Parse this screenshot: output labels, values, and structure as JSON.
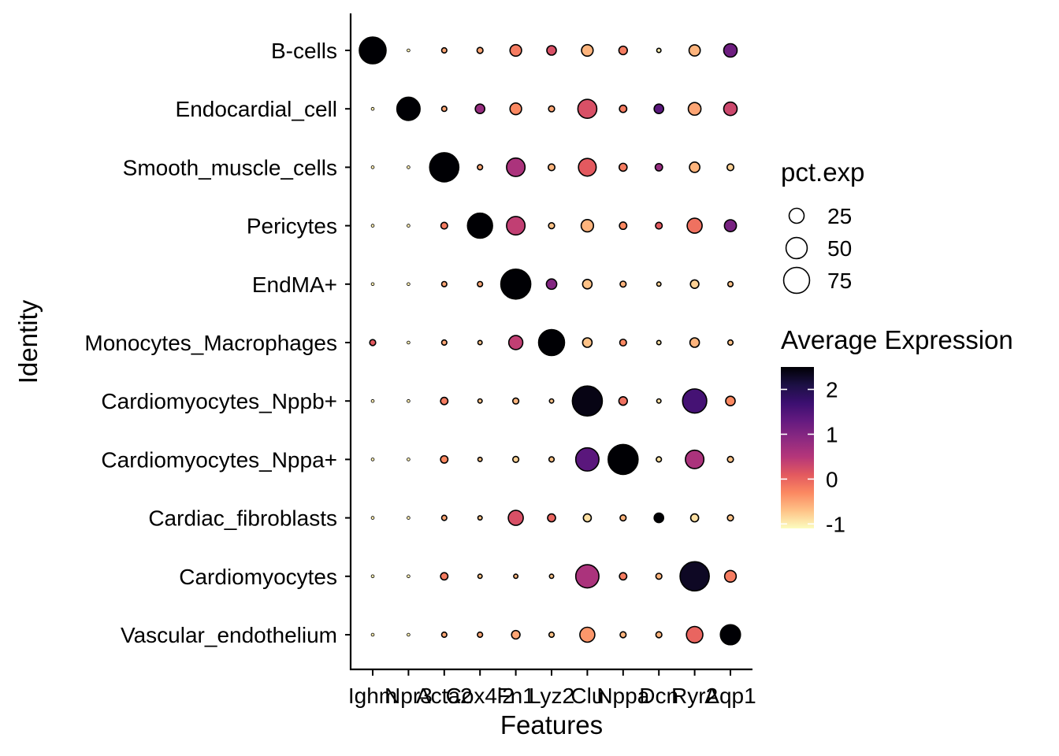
{
  "chart_data": {
    "type": "dotplot",
    "xlabel": "Features",
    "ylabel": "Identity",
    "features": [
      "Ighm",
      "Npr3",
      "Acta2",
      "Cox4i2",
      "Fn1",
      "Lyz2",
      "Clu",
      "Nppa",
      "Dcn",
      "Ryr2",
      "Aqp1"
    ],
    "identities": [
      "B-cells",
      "Endocardial_cell",
      "Smooth_muscle_cells",
      "Pericytes",
      "EndMA+",
      "Monocytes_Macrophages",
      "Cardiomyocytes_Nppb+",
      "Cardiomyocytes_Nppa+",
      "Cardiac_fibroblasts",
      "Cardiomyocytes",
      "Vascular_endothelium"
    ],
    "pct_exp": [
      [
        80,
        1,
        3,
        4,
        15,
        10,
        15,
        8,
        2,
        14,
        20
      ],
      [
        1,
        60,
        3,
        10,
        15,
        4,
        40,
        6,
        10,
        18,
        20
      ],
      [
        1,
        1,
        95,
        3,
        38,
        5,
        35,
        7,
        6,
        12,
        5
      ],
      [
        1,
        1,
        5,
        70,
        38,
        4,
        17,
        6,
        5,
        25,
        16
      ],
      [
        1,
        1,
        3,
        3,
        100,
        12,
        10,
        4,
        2,
        8,
        3
      ],
      [
        4,
        1,
        3,
        2,
        22,
        75,
        10,
        5,
        2,
        10,
        3
      ],
      [
        1,
        1,
        6,
        2,
        4,
        2,
        100,
        8,
        2,
        65,
        10
      ],
      [
        1,
        1,
        6,
        2,
        4,
        3,
        60,
        100,
        3,
        38,
        4
      ],
      [
        1,
        1,
        3,
        2,
        25,
        7,
        7,
        4,
        10,
        7,
        4
      ],
      [
        1,
        1,
        6,
        2,
        2,
        2,
        60,
        6,
        4,
        95,
        15
      ],
      [
        1,
        1,
        3,
        3,
        8,
        3,
        25,
        4,
        4,
        30,
        45
      ]
    ],
    "avg_exp": [
      [
        2.5,
        -1,
        -0.5,
        -0.5,
        -0.2,
        0.2,
        -0.6,
        -0.2,
        -1,
        -0.6,
        1.2
      ],
      [
        -1,
        2.5,
        -0.5,
        0.8,
        -0.3,
        -0.5,
        0.2,
        -0.2,
        1.4,
        -0.5,
        0.3
      ],
      [
        -1,
        -1,
        2.5,
        -0.5,
        0.6,
        -0.6,
        0.1,
        -0.2,
        0.8,
        -0.6,
        -0.8
      ],
      [
        -1,
        -1,
        -0.2,
        2.5,
        0.4,
        -0.7,
        -0.6,
        -0.3,
        0.1,
        -0.1,
        1.1
      ],
      [
        -1,
        -1,
        -0.5,
        -0.5,
        2.5,
        1.0,
        -0.7,
        -0.6,
        -0.8,
        -0.8,
        -0.7
      ],
      [
        0.1,
        -1,
        -0.5,
        -0.7,
        0.4,
        2.5,
        -0.7,
        -0.3,
        -0.9,
        -0.6,
        -0.7
      ],
      [
        -1,
        -1,
        -0.2,
        -0.7,
        -0.6,
        -0.7,
        2.4,
        -0.1,
        -0.9,
        1.6,
        -0.3
      ],
      [
        -1,
        -1,
        -0.3,
        -0.7,
        -0.8,
        -0.7,
        1.4,
        2.5,
        -0.9,
        0.6,
        -0.7
      ],
      [
        -1,
        -1,
        -0.5,
        -0.7,
        0.2,
        0.0,
        -0.9,
        -0.6,
        2.5,
        -0.9,
        -0.7
      ],
      [
        -1,
        -1,
        -0.2,
        -0.7,
        -0.6,
        -0.7,
        0.6,
        -0.2,
        -0.6,
        2.3,
        -0.2
      ],
      [
        -1,
        -1,
        -0.5,
        -0.5,
        -0.5,
        -0.7,
        -0.4,
        -0.6,
        -0.6,
        0.0,
        2.5
      ]
    ],
    "size_legend": {
      "title": "pct.exp",
      "values": [
        25,
        50,
        75
      ],
      "labels": [
        "25",
        "50",
        "75"
      ]
    },
    "color_legend": {
      "title": "Average Expression",
      "range": [
        -1.1,
        2.5
      ],
      "ticks": [
        -1,
        0,
        1,
        2
      ],
      "tick_labels": [
        "-1",
        "0",
        "1",
        "2"
      ],
      "colors": [
        "#FCFDBF",
        "#FEC287",
        "#FB8861",
        "#E3595F",
        "#B5367A",
        "#8C2981",
        "#641A80",
        "#3B0F70",
        "#1C1044",
        "#000004"
      ]
    },
    "grid": false
  }
}
